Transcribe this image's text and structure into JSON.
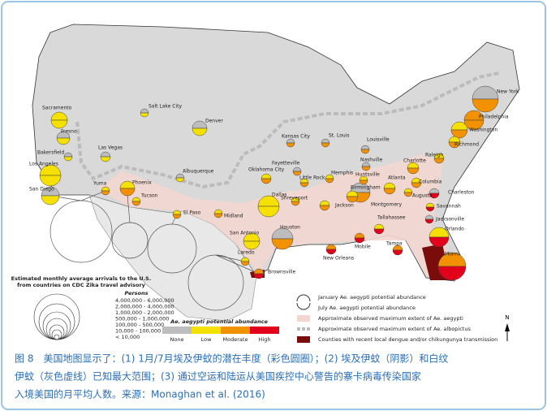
{
  "cities": [
    "New York",
    "Philadelphia",
    "Washington",
    "Richmond",
    "Raleigh",
    "Charlotte",
    "Columbia",
    "Charleston",
    "Augusta",
    "Savannah",
    "Jacksonville",
    "Orlando",
    "Miami",
    "Tampa",
    "Tallahassee",
    "Mobile",
    "New Orleans",
    "Montgomery",
    "Atlanta",
    "Birmingham",
    "Huntsville",
    "Nashville",
    "Memphis",
    "Jackson",
    "Louisville",
    "St. Louis",
    "Kansas City",
    "Fayetteville",
    "Little Rock",
    "Oklahoma City",
    "Shreveport",
    "Dallas",
    "Houston",
    "San Antonio",
    "Laredo",
    "Brownsville",
    "Midland",
    "El Paso",
    "Albuquerque",
    "Denver",
    "Salt Lake City",
    "Las Vegas",
    "Phoenix",
    "Tucson",
    "Yuma",
    "San Diego",
    "Los Angeles",
    "Bakersfield",
    "Fresno",
    "Sacramento"
  ],
  "arrivals_legend": {
    "title": [
      "Estimated monthly average arrivals to the U.S.",
      "from countries on CDC Zika travel advisory"
    ],
    "unit": "Persons",
    "ranges": [
      "4,000,000 - 6,000,000",
      "2,000,000 - 4,000,000",
      "1,000,000 - 2,000,000",
      "500,000 - 1,000,000",
      "100,000 - 500,000",
      "10,000 - 100,000",
      "< 10,000"
    ]
  },
  "abundance_legend": {
    "title": "Ae. aegypti potential abundance",
    "levels": [
      "None",
      "Low",
      "Moderate",
      "High"
    ]
  },
  "map_legend": [
    "January Ae. aegypti potential abundance",
    "July Ae. aegypti potential abundance",
    "Approximate observed maximum extent of Ae. aegypti",
    "Approximate observed maximum extent of Ae. albopictus",
    "Counties with recent local dengue and/or chikungunya transmission"
  ],
  "north": "N",
  "caption": [
    "图 8　美国地图显示了：(1) 1月/7月埃及伊蚊的潜在丰度（彩色圆圈）；(2) 埃及伊蚊（阴影）和白纹",
    "伊蚊（灰色虚线）已知最大范围；(3) 通过空运和陆运从美国疾控中心警告的寨卡病毒传染国家",
    "入境美国的月平均人数。来源：Monaghan et al. (2016)"
  ]
}
